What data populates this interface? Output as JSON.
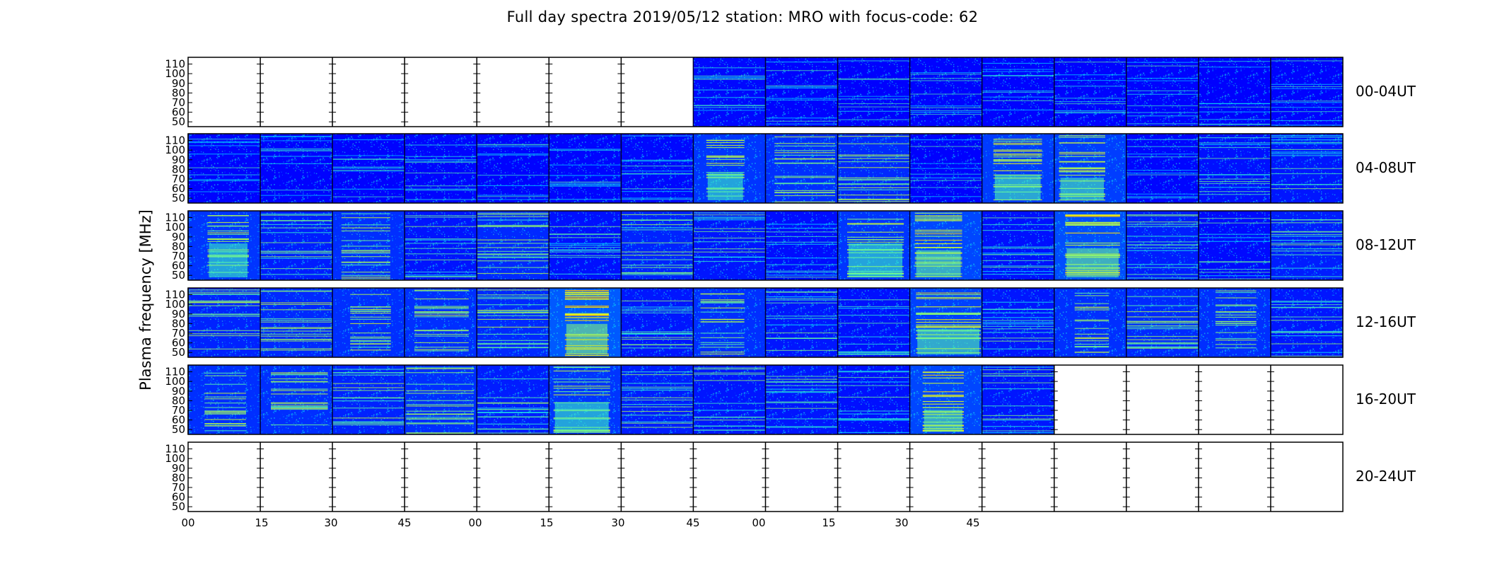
{
  "title": "Full day spectra 2019/05/12 station: MRO with focus-code: 62",
  "chart_data": {
    "type": "heatmap",
    "title": "Full day spectra 2019/05/12 station: MRO with focus-code: 62",
    "ylabel": "Plasma frequency [MHz]",
    "xlabel": "",
    "y_ticks": [
      "110",
      "100",
      "90",
      "80",
      "70",
      "60",
      "50"
    ],
    "y_tick_values": [
      110,
      100,
      90,
      80,
      70,
      60,
      50
    ],
    "x_tick_labels": [
      "00",
      "15",
      "30",
      "45",
      "00",
      "15",
      "30",
      "45",
      "00",
      "15",
      "30",
      "45"
    ],
    "colormap": "jet",
    "grid": false,
    "legend": "none",
    "rows": [
      {
        "label": "00-04UT",
        "filled": [
          0,
          0,
          0,
          0,
          0,
          0,
          0,
          1,
          1,
          1,
          1,
          1,
          1,
          1,
          1,
          1
        ],
        "intensity": [
          0,
          0,
          0,
          0,
          0,
          0,
          0,
          0.18,
          0.14,
          0.12,
          0.14,
          0.14,
          0.14,
          0.14,
          0.12,
          0.14
        ]
      },
      {
        "label": "04-08UT",
        "filled": [
          1,
          1,
          1,
          1,
          1,
          1,
          1,
          1,
          1,
          1,
          1,
          1,
          1,
          1,
          1,
          1
        ],
        "intensity": [
          0.14,
          0.14,
          0.14,
          0.16,
          0.14,
          0.16,
          0.18,
          0.55,
          0.5,
          0.45,
          0.12,
          0.6,
          0.62,
          0.16,
          0.25,
          0.3
        ]
      },
      {
        "label": "08-12UT",
        "filled": [
          1,
          1,
          1,
          1,
          1,
          1,
          1,
          1,
          1,
          1,
          1,
          1,
          1,
          1,
          1,
          1
        ],
        "intensity": [
          0.55,
          0.35,
          0.5,
          0.28,
          0.45,
          0.25,
          0.4,
          0.3,
          0.22,
          0.55,
          0.7,
          0.25,
          0.75,
          0.35,
          0.2,
          0.35
        ]
      },
      {
        "label": "12-16UT",
        "filled": [
          1,
          1,
          1,
          1,
          1,
          1,
          1,
          1,
          1,
          1,
          1,
          1,
          1,
          1,
          1,
          1
        ],
        "intensity": [
          0.4,
          0.45,
          0.5,
          0.5,
          0.45,
          0.85,
          0.3,
          0.5,
          0.3,
          0.25,
          0.65,
          0.3,
          0.5,
          0.45,
          0.5,
          0.3
        ]
      },
      {
        "label": "16-20UT",
        "filled": [
          1,
          1,
          1,
          1,
          1,
          1,
          1,
          1,
          1,
          1,
          1,
          1,
          0,
          0,
          0,
          0
        ],
        "intensity": [
          0.5,
          0.5,
          0.4,
          0.5,
          0.35,
          0.55,
          0.35,
          0.3,
          0.3,
          0.25,
          0.7,
          0.3,
          0,
          0,
          0,
          0
        ]
      },
      {
        "label": "20-24UT",
        "filled": [
          0,
          0,
          0,
          0,
          0,
          0,
          0,
          0,
          0,
          0,
          0,
          0,
          0,
          0,
          0,
          0
        ],
        "intensity": [
          0,
          0,
          0,
          0,
          0,
          0,
          0,
          0,
          0,
          0,
          0,
          0,
          0,
          0,
          0,
          0
        ]
      }
    ]
  }
}
